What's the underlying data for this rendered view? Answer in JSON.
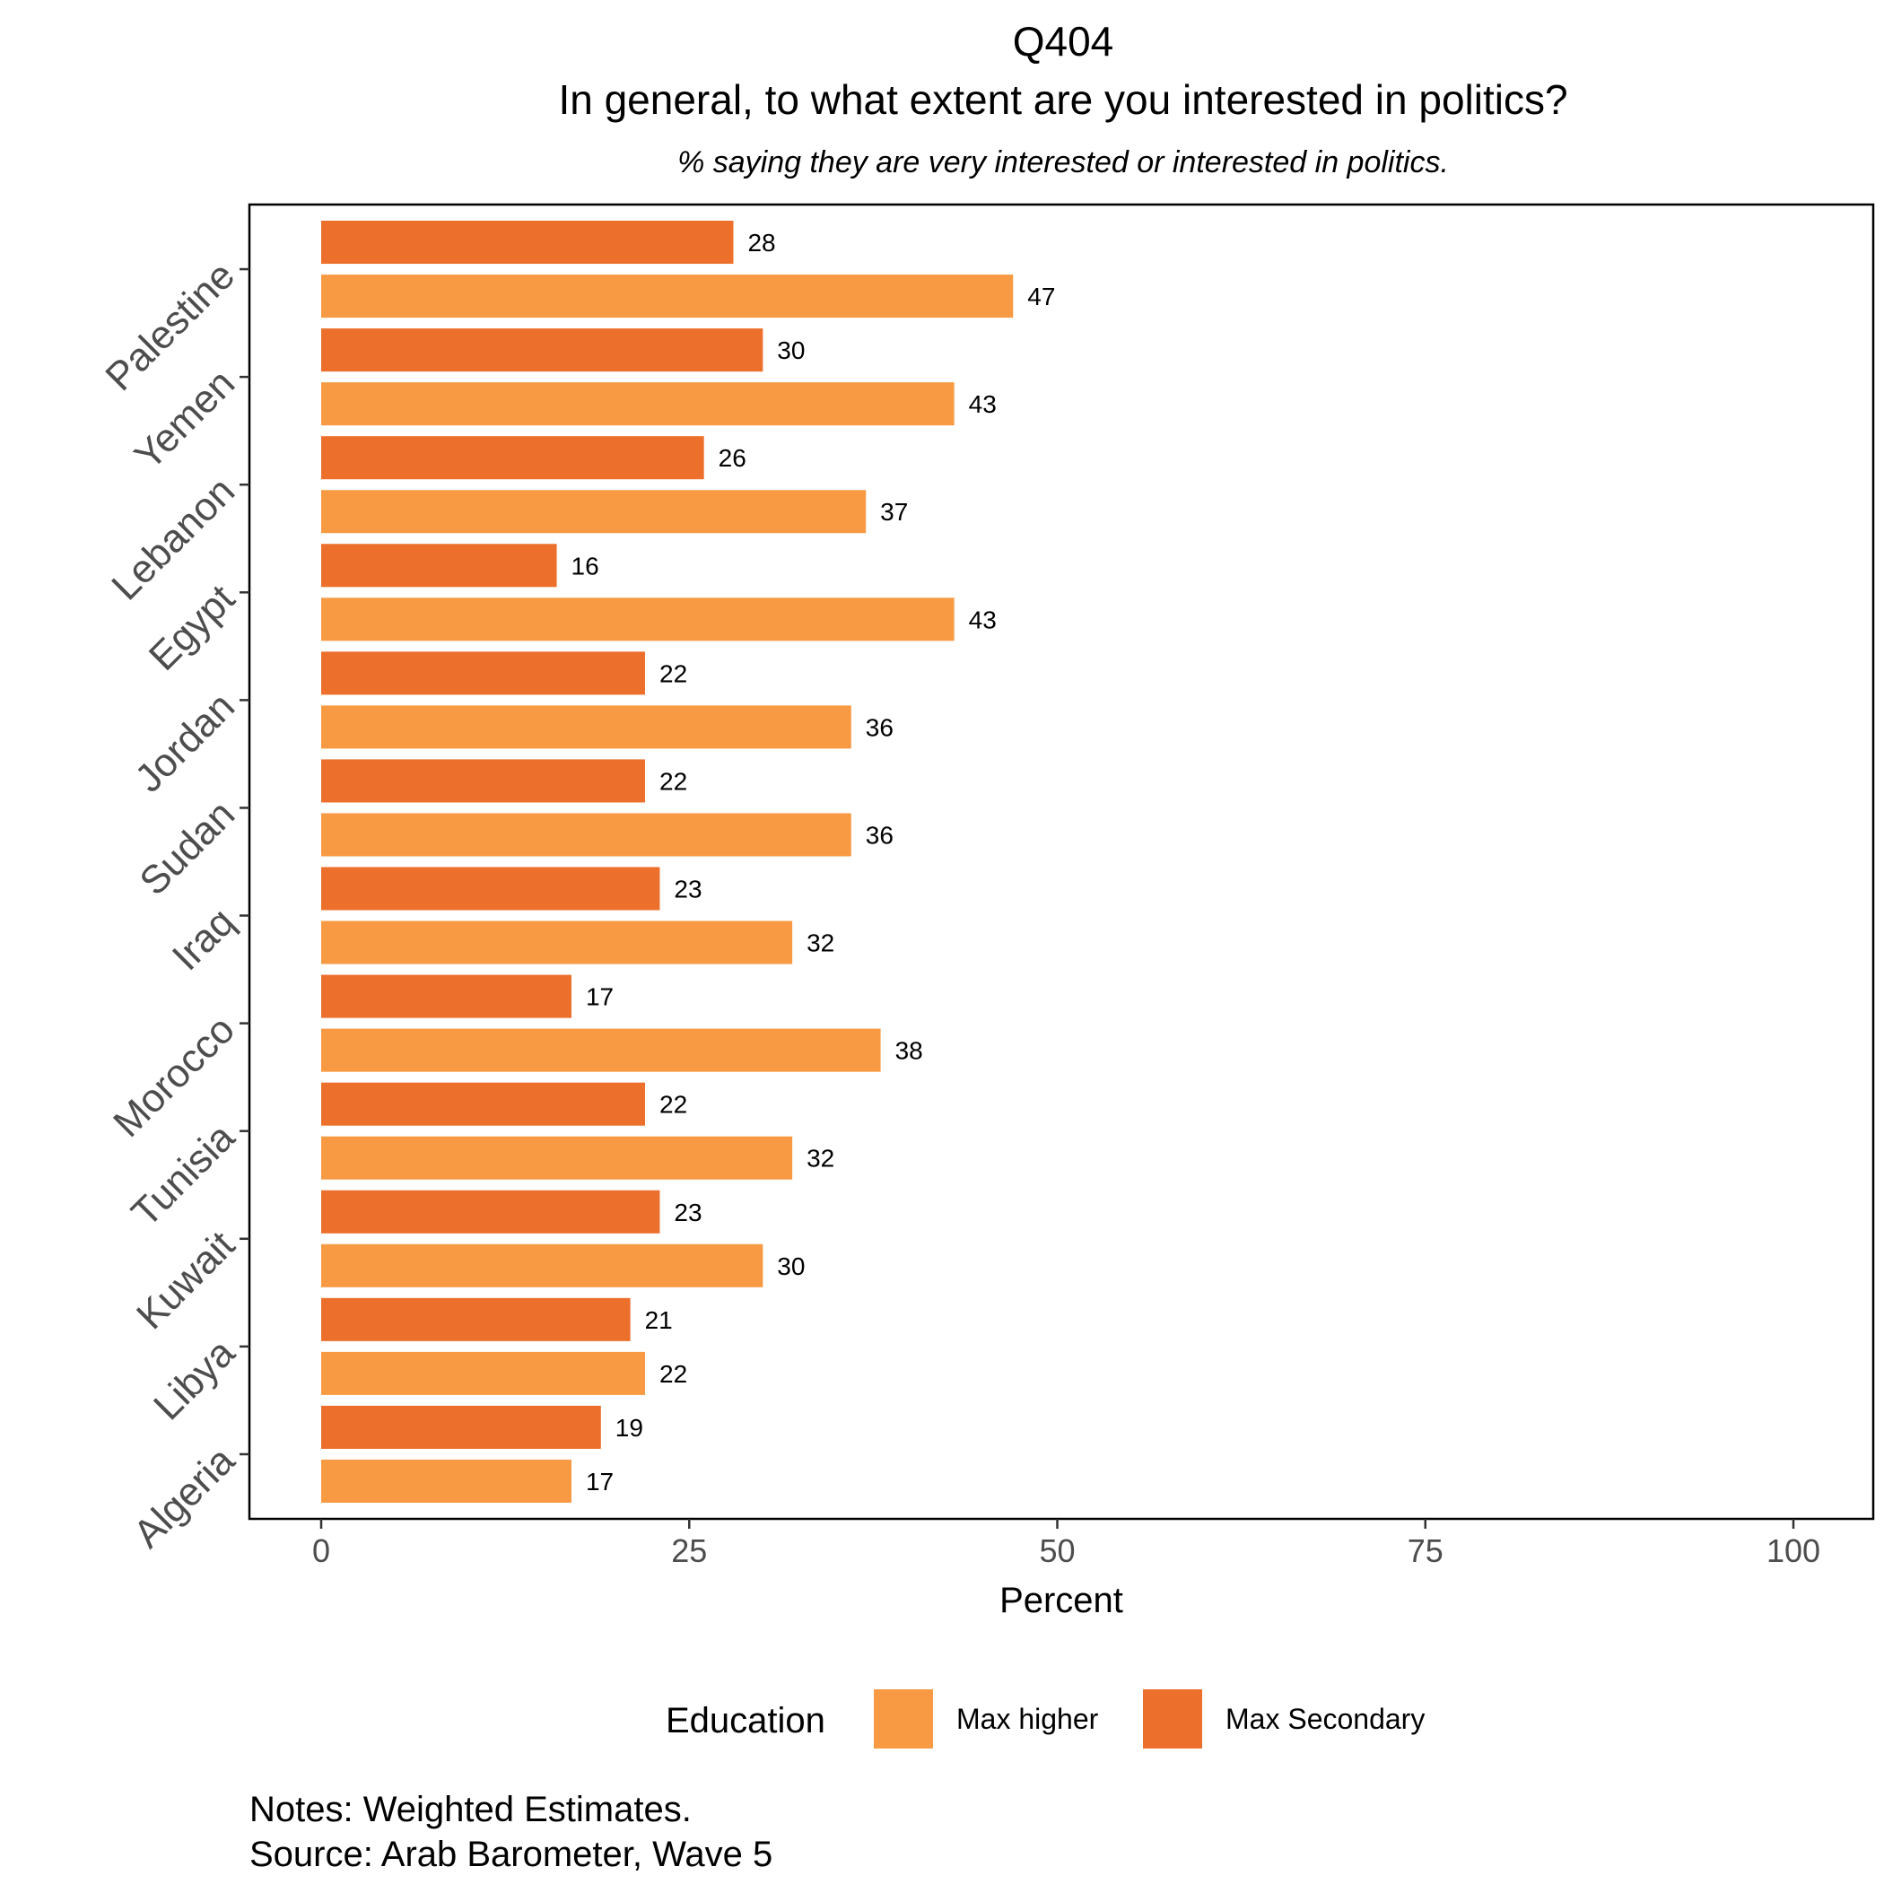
{
  "chart_data": {
    "type": "bar",
    "orientation": "horizontal",
    "title": "Q404",
    "subtitle": "In general, to what extent are you interested in politics?",
    "caption": "% saying they are very interested or interested in politics.",
    "xlabel": "Percent",
    "ylabel": "",
    "xlim": [
      0,
      100
    ],
    "x_ticks": [
      0,
      25,
      50,
      75,
      100
    ],
    "grid": false,
    "categories": [
      "Palestine",
      "Yemen",
      "Lebanon",
      "Egypt",
      "Jordan",
      "Sudan",
      "Iraq",
      "Morocco",
      "Tunisia",
      "Kuwait",
      "Libya",
      "Algeria"
    ],
    "series": [
      {
        "name": "Max Secondary",
        "color": "#EC6F2B",
        "values": [
          28,
          30,
          26,
          16,
          22,
          22,
          23,
          17,
          22,
          23,
          21,
          19
        ]
      },
      {
        "name": "Max higher",
        "color": "#F79A43",
        "values": [
          47,
          43,
          37,
          43,
          36,
          36,
          32,
          38,
          32,
          30,
          22,
          17
        ]
      }
    ],
    "legend": {
      "title": "Education",
      "placement": "bottom",
      "entries": [
        {
          "label": "Max higher",
          "color": "#F79A43"
        },
        {
          "label": "Max Secondary",
          "color": "#EC6F2B"
        }
      ]
    }
  },
  "notes": {
    "line1": "Notes: Weighted Estimates.",
    "line2": "Source: Arab Barometer, Wave 5"
  }
}
